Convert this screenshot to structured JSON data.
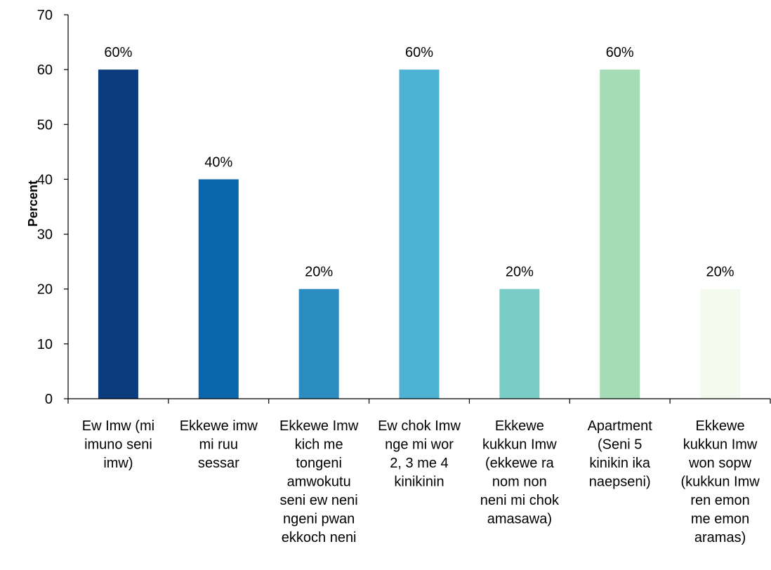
{
  "chart_data": {
    "type": "bar",
    "title": "",
    "xlabel": "",
    "ylabel": "Percent",
    "ylim": [
      0,
      70
    ],
    "yticks": [
      0,
      10,
      20,
      30,
      40,
      50,
      60,
      70
    ],
    "grid": false,
    "categories": [
      "Ew Imw (mi imuno seni imw)",
      "Ekkewe imw mi ruu sessar",
      "Ekkewe Imw kich me tongeni amwokutu seni ew neni ngeni pwan ekkoch neni",
      "Ew chok Imw nge mi wor 2, 3 me 4 kinikinin",
      "Ekkewe kukkun Imw (ekkewe ra nom non neni mi chok amasawa)",
      "Apartment (Seni 5 kinikin ika naepseni)",
      "Ekkewe kukkun Imw won sopw (kukkun Imw ren emon me emon aramas)"
    ],
    "category_lines": [
      [
        "Ew Imw (mi",
        "imuno seni",
        "imw)"
      ],
      [
        "Ekkewe imw",
        "mi ruu",
        "sessar"
      ],
      [
        "Ekkewe Imw",
        "kich me",
        "tongeni",
        "amwokutu",
        "seni ew neni",
        "ngeni pwan",
        "ekkoch neni"
      ],
      [
        "Ew chok Imw",
        "nge mi wor",
        "2, 3 me 4",
        "kinikinin"
      ],
      [
        "Ekkewe",
        "kukkun Imw",
        "(ekkewe ra",
        "nom non",
        "neni mi chok",
        "amasawa)"
      ],
      [
        "Apartment",
        "(Seni 5",
        "kinikin ika",
        "naepseni)"
      ],
      [
        "Ekkewe",
        "kukkun Imw",
        "won sopw",
        "(kukkun Imw",
        "ren emon",
        "me emon",
        "aramas)"
      ]
    ],
    "values": [
      60,
      40,
      20,
      60,
      20,
      60,
      20
    ],
    "data_labels": [
      "60%",
      "40%",
      "20%",
      "60%",
      "20%",
      "60%",
      "20%"
    ],
    "colors": [
      "#0b3d7e",
      "#0a67ab",
      "#2a8cc1",
      "#4eb2d5",
      "#7accc6",
      "#a6dcb5",
      "#f4fbee"
    ]
  }
}
